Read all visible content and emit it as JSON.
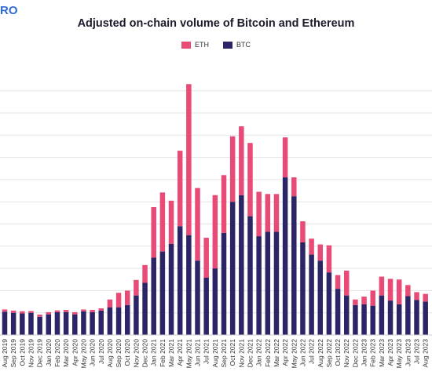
{
  "logo_text": "RO",
  "chart_data": {
    "type": "bar",
    "stacked": true,
    "title": "Adjusted on-chain volume of Bitcoin and Ethereum",
    "xlabel": "",
    "ylabel": "",
    "grid": true,
    "legend_position": "top-center",
    "colors": {
      "ETH": "#e84b76",
      "BTC": "#2b2466"
    },
    "categories": [
      "Aug 2019",
      "Sep 2019",
      "Oct 2019",
      "Nov 2019",
      "Dec 2019",
      "Jan 2020",
      "Feb 2020",
      "Mar 2020",
      "Apr 2020",
      "May 2020",
      "Jun 2020",
      "Jul 2020",
      "Aug 2020",
      "Sep 2020",
      "Oct 2020",
      "Nov 2020",
      "Dec 2020",
      "Jan 2021",
      "Feb 2021",
      "Mar 2021",
      "Apr 2021",
      "May 2021",
      "Jun 2021",
      "Jul 2021",
      "Aug 2021",
      "Sep 2021",
      "Oct 2021",
      "Nov 2021",
      "Dec 2021",
      "Jan 2022",
      "Feb 2022",
      "Mar 2022",
      "Apr 2022",
      "May 2022",
      "Jun 2022",
      "Jul 2022",
      "Aug 2022",
      "Sep 2022",
      "Oct 2022",
      "Nov 2022",
      "Dec 2022",
      "Jan 2023",
      "Feb 2023",
      "Mar 2023",
      "Apr 2023",
      "May 2023",
      "Jun 2023",
      "Jul 2023",
      "Aug 2023"
    ],
    "series": [
      {
        "name": "BTC",
        "values": [
          1.05,
          1.0,
          0.97,
          1.0,
          0.82,
          0.93,
          1.03,
          1.03,
          0.93,
          1.07,
          1.03,
          1.1,
          1.25,
          1.25,
          1.35,
          1.78,
          2.35,
          3.48,
          3.76,
          4.1,
          4.9,
          4.5,
          3.35,
          2.58,
          3.0,
          4.6,
          6.0,
          6.3,
          5.35,
          4.45,
          4.65,
          4.65,
          7.1,
          6.25,
          4.17,
          3.62,
          3.35,
          2.82,
          2.08,
          1.78,
          1.35,
          1.38,
          1.32,
          1.78,
          1.55,
          1.38,
          1.75,
          1.58,
          1.5
        ]
      },
      {
        "name": "ETH",
        "values": [
          0.1,
          0.1,
          0.1,
          0.08,
          0.1,
          0.1,
          0.08,
          0.1,
          0.1,
          0.08,
          0.1,
          0.1,
          0.35,
          0.65,
          0.65,
          0.7,
          0.8,
          2.28,
          2.66,
          1.95,
          3.4,
          6.8,
          3.27,
          1.8,
          3.3,
          2.6,
          2.95,
          3.1,
          3.3,
          2.0,
          1.7,
          1.7,
          1.8,
          0.85,
          0.95,
          0.72,
          0.73,
          1.22,
          0.62,
          1.12,
          0.25,
          0.35,
          0.68,
          0.85,
          0.98,
          1.12,
          0.5,
          0.35,
          0.35
        ]
      }
    ]
  }
}
